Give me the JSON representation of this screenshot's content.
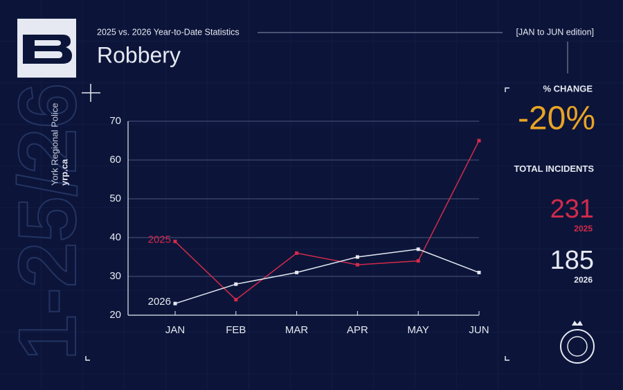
{
  "chart_data": {
    "type": "line",
    "title": "Robbery",
    "subtitle": "2025 vs. 2026 Year-to-Date Statistics",
    "edition": "[JAN to JUN edition]",
    "categories": [
      "JAN",
      "FEB",
      "MAR",
      "APR",
      "MAY",
      "JUN"
    ],
    "series": [
      {
        "name": "2025",
        "color": "#d42a4c",
        "values": [
          39,
          24,
          36,
          33,
          34,
          65
        ]
      },
      {
        "name": "2026",
        "color": "#e6e9f2",
        "values": [
          23,
          28,
          31,
          35,
          37,
          31
        ]
      }
    ],
    "ylim": [
      20,
      70
    ],
    "yticks": [
      20,
      30,
      40,
      50,
      60,
      70
    ],
    "grid": true
  },
  "stats": {
    "change_label": "% CHANGE",
    "change_value": "-20%",
    "total_label": "TOTAL INCIDENTS",
    "totals": [
      {
        "value": "231",
        "year": "2025"
      },
      {
        "value": "185",
        "year": "2026"
      }
    ]
  },
  "brand": {
    "name": "York Regional Police",
    "url": "yrp.ca",
    "mark": "1-25/26"
  }
}
